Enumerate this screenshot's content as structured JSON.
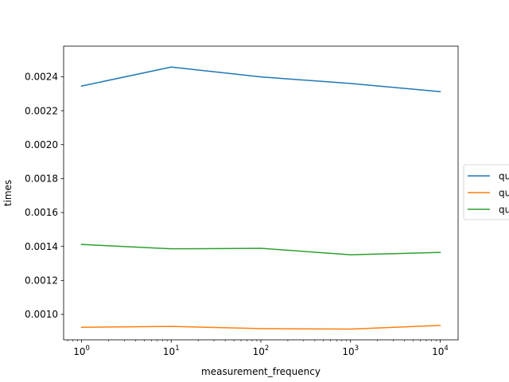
{
  "chart_data": {
    "type": "line",
    "title": "",
    "xlabel": "measurement_frequency",
    "ylabel": "times",
    "xscale": "log",
    "x": [
      1,
      10,
      100,
      1000,
      10000
    ],
    "x_ticks": [
      {
        "value": 1,
        "base": "10",
        "exp": "0"
      },
      {
        "value": 10,
        "base": "10",
        "exp": "1"
      },
      {
        "value": 100,
        "base": "10",
        "exp": "2"
      },
      {
        "value": 1000,
        "base": "10",
        "exp": "3"
      },
      {
        "value": 10000,
        "base": "10",
        "exp": "4"
      }
    ],
    "ylim": [
      0.00085,
      0.00258
    ],
    "y_ticks": [
      {
        "value": 0.001,
        "label": "0.0010"
      },
      {
        "value": 0.0012,
        "label": "0.0012"
      },
      {
        "value": 0.0014,
        "label": "0.0014"
      },
      {
        "value": 0.0016,
        "label": "0.0016"
      },
      {
        "value": 0.0018,
        "label": "0.0018"
      },
      {
        "value": 0.002,
        "label": "0.0020"
      },
      {
        "value": 0.0022,
        "label": "0.0022"
      },
      {
        "value": 0.0024,
        "label": "0.0024"
      }
    ],
    "grid": false,
    "legend": "right, outside",
    "series": [
      {
        "name": "qu",
        "color": "#1f77b4",
        "values": [
          0.002345,
          0.002457,
          0.002399,
          0.00236,
          0.002312
        ]
      },
      {
        "name": "qu",
        "color": "#ff7f0e",
        "values": [
          0.000924,
          0.000929,
          0.000916,
          0.000913,
          0.000935
        ]
      },
      {
        "name": "qu",
        "color": "#2ca02c",
        "values": [
          0.001412,
          0.001386,
          0.001389,
          0.001351,
          0.001365
        ]
      }
    ]
  }
}
